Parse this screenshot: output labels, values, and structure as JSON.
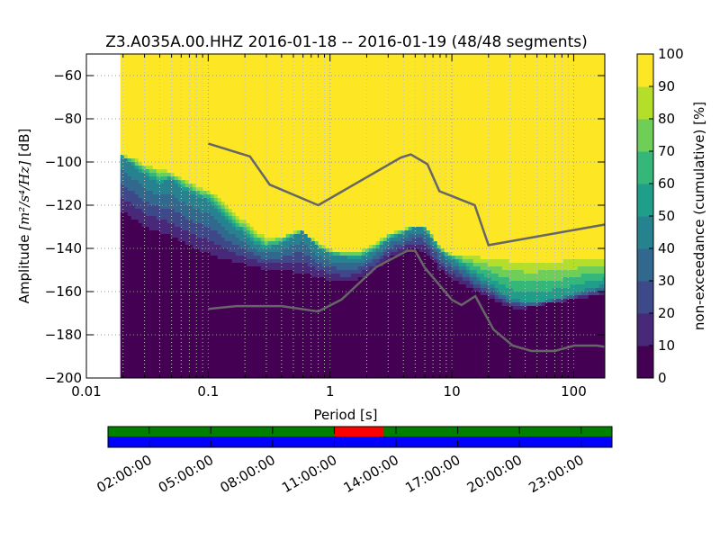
{
  "chart_data": [
    {
      "type": "heatmap",
      "title": "Z3.A035A.00.HHZ   2016-01-18 -- 2016-01-19  (48/48 segments)",
      "xlabel": "Period [s]",
      "ylabel_prefix": "Amplitude ",
      "ylabel_math": "[m²/s⁴/Hz]",
      "ylabel_suffix": " [dB]",
      "x_scale": "log",
      "xlim": [
        0.01,
        180
      ],
      "ylim": [
        -200,
        -50
      ],
      "x_ticks": [
        {
          "value": 0.01,
          "label": "0.01"
        },
        {
          "value": 0.1,
          "label": "0.1"
        },
        {
          "value": 1,
          "label": "1"
        },
        {
          "value": 10,
          "label": "10"
        },
        {
          "value": 100,
          "label": "100"
        }
      ],
      "y_ticks": [
        {
          "value": -60,
          "label": "−60"
        },
        {
          "value": -80,
          "label": "−80"
        },
        {
          "value": -100,
          "label": "−100"
        },
        {
          "value": -120,
          "label": "−120"
        },
        {
          "value": -140,
          "label": "−140"
        },
        {
          "value": -160,
          "label": "−160"
        },
        {
          "value": -180,
          "label": "−180"
        },
        {
          "value": -200,
          "label": "−200"
        }
      ],
      "grid": true,
      "data_x_start": 0.019,
      "psd_bands": {
        "period": [
          0.019,
          0.025,
          0.03,
          0.04,
          0.05,
          0.06,
          0.07,
          0.08,
          0.1,
          0.12,
          0.15,
          0.2,
          0.25,
          0.3,
          0.4,
          0.5,
          0.6,
          0.8,
          1.0,
          1.3,
          1.6,
          2.0,
          2.5,
          3.0,
          4.0,
          5.0,
          6.0,
          7.0,
          8.0,
          10,
          13,
          16,
          20,
          25,
          30,
          40,
          50,
          60,
          80,
          100,
          130,
          180
        ],
        "median_db": [
          -97,
          -102,
          -106,
          -110,
          -108,
          -112,
          -114,
          -116,
          -118,
          -122,
          -128,
          -134,
          -138,
          -140,
          -138,
          -134,
          -132,
          -140,
          -143,
          -144,
          -145,
          -143,
          -140,
          -136,
          -133,
          -130,
          -131,
          -136,
          -141,
          -145,
          -149,
          -153,
          -156,
          -160,
          -163,
          -165,
          -165,
          -164,
          -163,
          -161,
          -159,
          -157
        ],
        "low_db": [
          -125,
          -130,
          -133,
          -135,
          -138,
          -140,
          -142,
          -143,
          -145,
          -147,
          -148,
          -149,
          -150,
          -151,
          -152,
          -153,
          -154,
          -155,
          -156,
          -157,
          -156,
          -153,
          -150,
          -146,
          -143,
          -141,
          -143,
          -147,
          -151,
          -155,
          -158,
          -161,
          -164,
          -166,
          -168,
          -168,
          -167,
          -166,
          -165,
          -164,
          -163,
          -162
        ],
        "upper_envelope_db": [
          -96,
          -98,
          -100,
          -102,
          -104,
          -106,
          -108,
          -110,
          -112,
          -115,
          -120,
          -126,
          -131,
          -134,
          -134,
          -132,
          -132,
          -137,
          -140,
          -141,
          -141,
          -139,
          -136,
          -133,
          -131,
          -129,
          -130,
          -134,
          -139,
          -142,
          -142,
          -142,
          -142,
          -142,
          -142,
          -142,
          -142,
          -142,
          -142,
          -142,
          -142,
          -142
        ]
      },
      "nhnm": {
        "period": [
          0.1,
          0.22,
          0.32,
          0.8,
          3.8,
          4.6,
          6.3,
          7.9,
          15.4,
          20,
          354.8
        ],
        "db": [
          -91.5,
          -97.4,
          -110.5,
          -120,
          -98,
          -96.5,
          -101,
          -113.5,
          -120,
          -138.5,
          -126
        ]
      },
      "nlnm": {
        "period": [
          0.1,
          0.17,
          0.4,
          0.8,
          1.24,
          2.4,
          4.3,
          5,
          6,
          10,
          12,
          15.6,
          21.9,
          31.6,
          45,
          70,
          101,
          154,
          328
        ],
        "db": [
          -168,
          -166.7,
          -166.7,
          -169.2,
          -163.7,
          -148.6,
          -141.1,
          -141.1,
          -149,
          -163.8,
          -166.2,
          -162.1,
          -177.5,
          -185,
          -187.5,
          -187.5,
          -185,
          -185,
          -187.5
        ]
      }
    },
    {
      "type": "colorbar",
      "label": "non-exceedance (cumulative) [%]",
      "range": [
        0,
        100
      ],
      "ticks": [
        {
          "value": 0,
          "label": "0"
        },
        {
          "value": 10,
          "label": "10"
        },
        {
          "value": 20,
          "label": "20"
        },
        {
          "value": 30,
          "label": "30"
        },
        {
          "value": 40,
          "label": "40"
        },
        {
          "value": 50,
          "label": "50"
        },
        {
          "value": 60,
          "label": "60"
        },
        {
          "value": 70,
          "label": "70"
        },
        {
          "value": 80,
          "label": "80"
        },
        {
          "value": 90,
          "label": "90"
        },
        {
          "value": 100,
          "label": "100"
        }
      ],
      "colormap": [
        "#440154",
        "#482878",
        "#3e4989",
        "#31688e",
        "#26828e",
        "#1f9e89",
        "#35b779",
        "#6ece58",
        "#b5de2b",
        "#fde725"
      ]
    },
    {
      "type": "timeline",
      "time_start_hours": 0,
      "time_end_hours": 24.5,
      "tick_labels": [
        {
          "hours": 2,
          "label": "02:00:00"
        },
        {
          "hours": 5,
          "label": "05:00:00"
        },
        {
          "hours": 8,
          "label": "08:00:00"
        },
        {
          "hours": 11,
          "label": "11:00:00"
        },
        {
          "hours": 14,
          "label": "14:00:00"
        },
        {
          "hours": 17,
          "label": "17:00:00"
        },
        {
          "hours": 20,
          "label": "20:00:00"
        },
        {
          "hours": 23,
          "label": "23:00:00"
        }
      ],
      "top_track_color": "#008000",
      "bottom_track_color": "#0000ff",
      "highlight": {
        "start_hours": 11,
        "end_hours": 13.4,
        "color": "#ff0000"
      }
    }
  ]
}
